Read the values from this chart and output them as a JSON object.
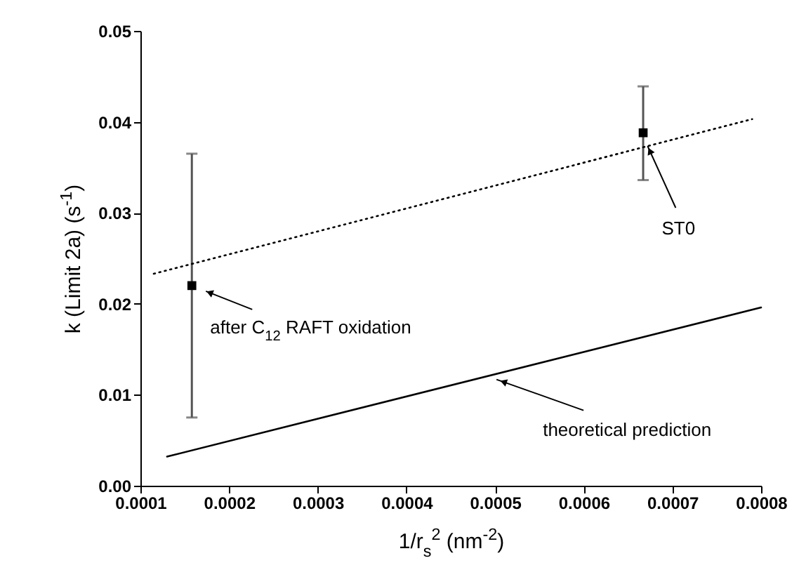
{
  "chart_data": {
    "type": "scatter",
    "xlabel": "1/r$_{s}$$^{2}$ (nm$^{-2}$)",
    "ylabel": "k  (Limit 2a) (s$^{-1}$)",
    "xlim": [
      0.0001,
      0.0008
    ],
    "ylim": [
      0,
      0.05
    ],
    "xticks": [
      0.0001,
      0.0002,
      0.0003,
      0.0004,
      0.0005,
      0.0006,
      0.0007,
      0.0008
    ],
    "yticks": [
      {
        "value": 0,
        "label": "0.00"
      },
      {
        "value": 0.01,
        "label": "0.01"
      },
      {
        "value": 0.02,
        "label": "0.02"
      },
      {
        "value": 0.03,
        "label": "0.03"
      },
      {
        "value": 0.04,
        "label": "0.04"
      },
      {
        "value": 0.05,
        "label": "0.05"
      }
    ],
    "series": [
      {
        "color": "#000000",
        "marker": "square",
        "x": [
          0.000158,
          0.000667
        ],
        "values": [
          0.022,
          0.0388
        ],
        "errors": [
          [
            0.0075,
            0.0365
          ],
          [
            0.0336,
            0.0439
          ]
        ]
      },
      {
        "type": "line",
        "color": "#000000",
        "line_style": "dotted",
        "x": [
          0.000115,
          0.00079
        ],
        "values": [
          0.0233,
          0.0403
        ]
      },
      {
        "type": "line",
        "color": "#000000",
        "line_style": "solid",
        "x": [
          0.00013,
          0.0008
        ],
        "values": [
          0.0032,
          0.0196
        ]
      }
    ],
    "annotations": [
      {
        "text": "after C$_{12}$ RAFT oxidation",
        "x": 0.000158,
        "y": 0.022
      },
      {
        "text": "ST0",
        "x": 0.000672,
        "y": 0.0375
      },
      {
        "text": "theoretical prediction",
        "x": 0.0005,
        "y": 0.0123
      }
    ]
  }
}
